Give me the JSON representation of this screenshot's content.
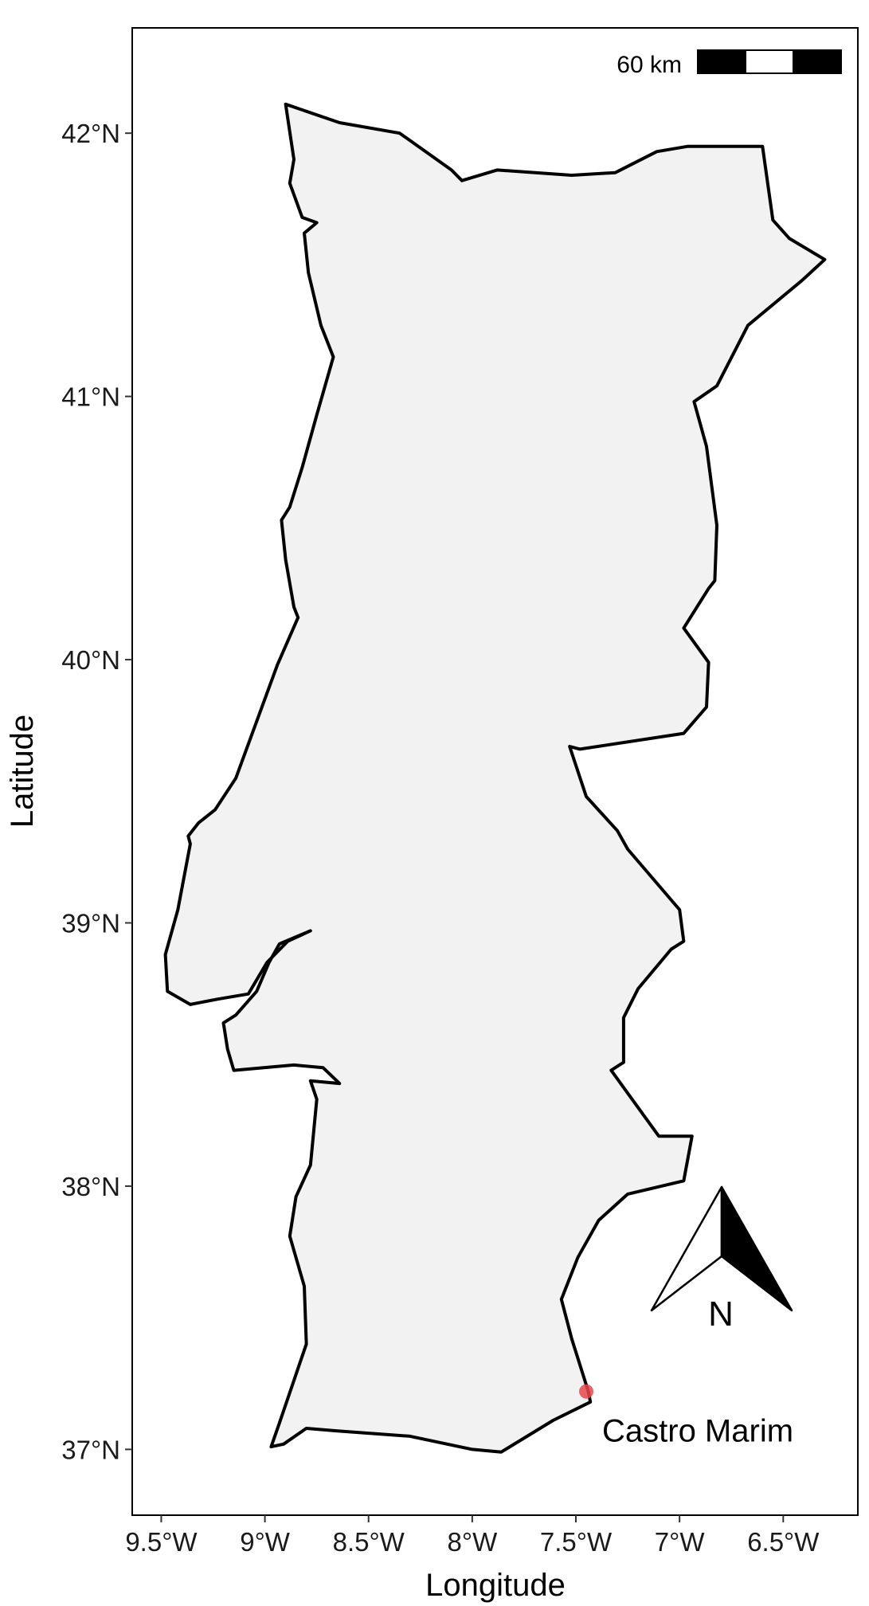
{
  "map": {
    "xlabel": "Longitude",
    "ylabel": "Latitude",
    "x_ticks": [
      {
        "value": -9.5,
        "label": "9.5°W"
      },
      {
        "value": -9.0,
        "label": "9°W"
      },
      {
        "value": -8.5,
        "label": "8.5°W"
      },
      {
        "value": -8.0,
        "label": "8°W"
      },
      {
        "value": -7.5,
        "label": "7.5°W"
      },
      {
        "value": -7.0,
        "label": "7°W"
      },
      {
        "value": -6.5,
        "label": "6.5°W"
      }
    ],
    "y_ticks": [
      {
        "value": 42,
        "label": "42°N"
      },
      {
        "value": 41,
        "label": "41°N"
      },
      {
        "value": 40,
        "label": "40°N"
      },
      {
        "value": 39,
        "label": "39°N"
      },
      {
        "value": 38,
        "label": "38°N"
      },
      {
        "value": 37,
        "label": "37°N"
      }
    ],
    "xlim": [
      -9.64,
      -6.14
    ],
    "ylim": [
      36.75,
      42.4
    ],
    "scale_bar": {
      "label": "60 km"
    },
    "north_arrow": {
      "label": "N"
    },
    "country_fill": "#f2f2f2",
    "outline_color": "#000000",
    "location": {
      "name": "Castro Marim",
      "lon": -7.45,
      "lat": 37.22,
      "color": "#e8484b"
    },
    "outline": [
      [
        -8.9,
        42.11
      ],
      [
        -8.64,
        42.04
      ],
      [
        -8.35,
        42.0
      ],
      [
        -8.1,
        41.86
      ],
      [
        -8.05,
        41.82
      ],
      [
        -7.88,
        41.86
      ],
      [
        -7.52,
        41.84
      ],
      [
        -7.31,
        41.85
      ],
      [
        -7.11,
        41.93
      ],
      [
        -6.96,
        41.95
      ],
      [
        -6.6,
        41.95
      ],
      [
        -6.55,
        41.67
      ],
      [
        -6.47,
        41.6
      ],
      [
        -6.3,
        41.52
      ],
      [
        -6.41,
        41.44
      ],
      [
        -6.67,
        41.27
      ],
      [
        -6.82,
        41.04
      ],
      [
        -6.93,
        40.98
      ],
      [
        -6.87,
        40.81
      ],
      [
        -6.82,
        40.51
      ],
      [
        -6.83,
        40.3
      ],
      [
        -6.86,
        40.27
      ],
      [
        -6.98,
        40.12
      ],
      [
        -6.86,
        39.99
      ],
      [
        -6.87,
        39.82
      ],
      [
        -6.98,
        39.72
      ],
      [
        -7.48,
        39.66
      ],
      [
        -7.53,
        39.67
      ],
      [
        -7.45,
        39.48
      ],
      [
        -7.3,
        39.35
      ],
      [
        -7.25,
        39.28
      ],
      [
        -7.0,
        39.05
      ],
      [
        -6.98,
        38.93
      ],
      [
        -7.04,
        38.9
      ],
      [
        -7.2,
        38.75
      ],
      [
        -7.27,
        38.64
      ],
      [
        -7.27,
        38.47
      ],
      [
        -7.33,
        38.44
      ],
      [
        -7.1,
        38.19
      ],
      [
        -6.94,
        38.19
      ],
      [
        -6.98,
        38.02
      ],
      [
        -7.25,
        37.97
      ],
      [
        -7.39,
        37.87
      ],
      [
        -7.49,
        37.73
      ],
      [
        -7.57,
        37.57
      ],
      [
        -7.52,
        37.42
      ],
      [
        -7.44,
        37.22
      ],
      [
        -7.43,
        37.18
      ],
      [
        -7.61,
        37.11
      ],
      [
        -7.86,
        36.99
      ],
      [
        -8.0,
        37.0
      ],
      [
        -8.3,
        37.05
      ],
      [
        -8.65,
        37.07
      ],
      [
        -8.8,
        37.08
      ],
      [
        -8.91,
        37.02
      ],
      [
        -8.97,
        37.01
      ],
      [
        -8.93,
        37.1
      ],
      [
        -8.8,
        37.4
      ],
      [
        -8.81,
        37.62
      ],
      [
        -8.88,
        37.81
      ],
      [
        -8.85,
        37.96
      ],
      [
        -8.78,
        38.08
      ],
      [
        -8.75,
        38.33
      ],
      [
        -8.78,
        38.4
      ],
      [
        -8.64,
        38.39
      ],
      [
        -8.72,
        38.45
      ],
      [
        -8.86,
        38.46
      ],
      [
        -9.15,
        38.44
      ],
      [
        -9.18,
        38.52
      ],
      [
        -9.2,
        38.62
      ],
      [
        -9.14,
        38.65
      ],
      [
        -9.04,
        38.74
      ],
      [
        -8.98,
        38.85
      ],
      [
        -8.93,
        38.92
      ],
      [
        -8.78,
        38.97
      ],
      [
        -8.89,
        38.93
      ],
      [
        -8.99,
        38.85
      ],
      [
        -9.08,
        38.73
      ],
      [
        -9.23,
        38.71
      ],
      [
        -9.36,
        38.69
      ],
      [
        -9.47,
        38.74
      ],
      [
        -9.48,
        38.88
      ],
      [
        -9.42,
        39.05
      ],
      [
        -9.36,
        39.3
      ],
      [
        -9.37,
        39.33
      ],
      [
        -9.32,
        39.38
      ],
      [
        -9.24,
        39.43
      ],
      [
        -9.14,
        39.55
      ],
      [
        -8.94,
        39.98
      ],
      [
        -8.84,
        40.16
      ],
      [
        -8.86,
        40.2
      ],
      [
        -8.9,
        40.38
      ],
      [
        -8.92,
        40.53
      ],
      [
        -8.88,
        40.58
      ],
      [
        -8.82,
        40.73
      ],
      [
        -8.75,
        40.93
      ],
      [
        -8.67,
        41.15
      ],
      [
        -8.73,
        41.27
      ],
      [
        -8.79,
        41.47
      ],
      [
        -8.81,
        41.62
      ],
      [
        -8.75,
        41.66
      ],
      [
        -8.82,
        41.68
      ],
      [
        -8.88,
        41.81
      ],
      [
        -8.86,
        41.9
      ]
    ]
  }
}
